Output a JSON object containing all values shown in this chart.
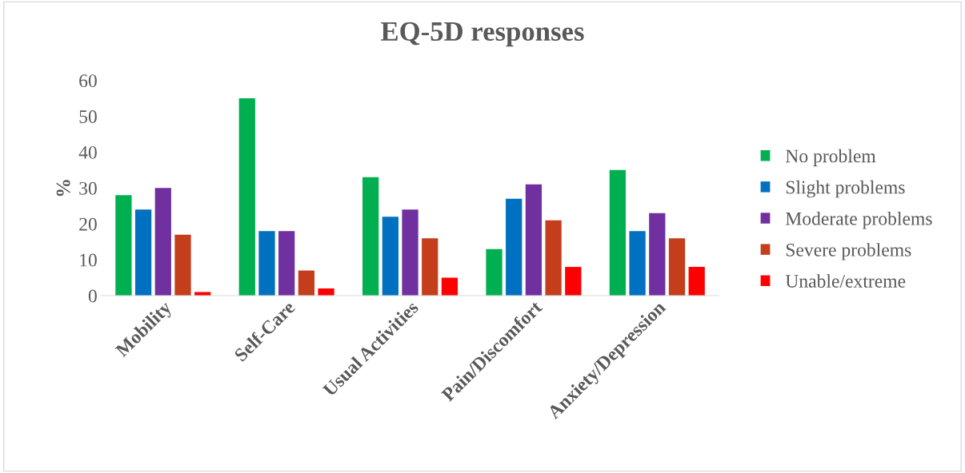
{
  "chart_data": {
    "type": "bar",
    "title": "EQ-5D responses",
    "ylabel": "%",
    "categories": [
      "Mobility",
      "Self-Care",
      "Usual Activities",
      "Pain/Discomfort",
      "Anxiety/Depression"
    ],
    "series": [
      {
        "name": "No problem",
        "color": "#00b050",
        "values": [
          28,
          55,
          33,
          13,
          35
        ]
      },
      {
        "name": "Slight problems",
        "color": "#0070c0",
        "values": [
          24,
          18,
          22,
          27,
          18
        ]
      },
      {
        "name": "Moderate problems",
        "color": "#7030a0",
        "values": [
          30,
          18,
          24,
          31,
          23
        ]
      },
      {
        "name": "Severe problems",
        "color": "#c43e1c",
        "values": [
          17,
          7,
          16,
          21,
          16
        ]
      },
      {
        "name": "Unable/extreme",
        "color": "#ff0000",
        "values": [
          1,
          2,
          5,
          8,
          8
        ]
      }
    ],
    "ylim": [
      0,
      60
    ],
    "yticks": [
      0,
      10,
      20,
      30,
      40,
      50,
      60
    ],
    "grid": false,
    "legend": "right"
  }
}
